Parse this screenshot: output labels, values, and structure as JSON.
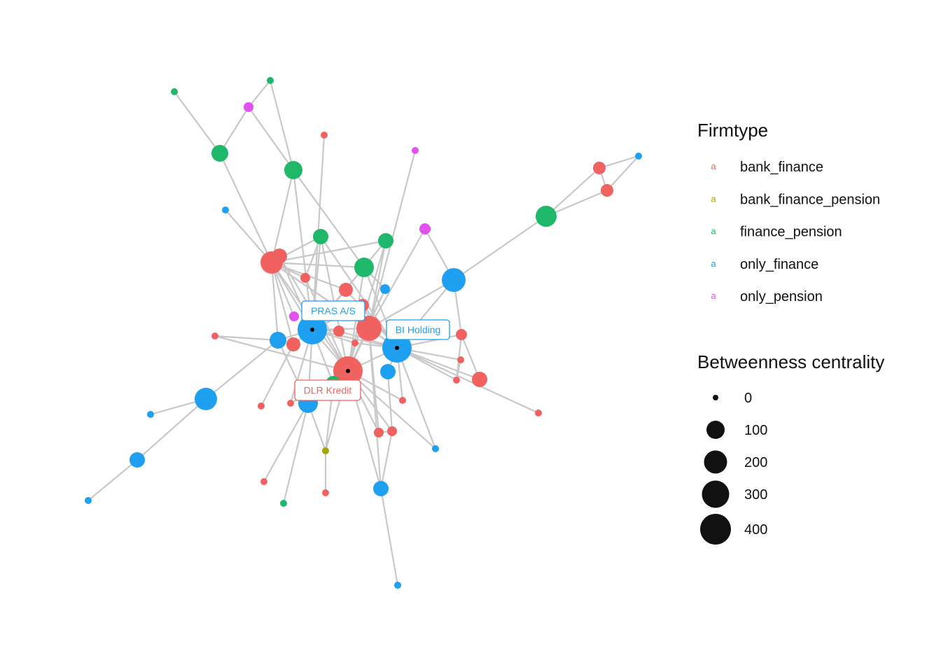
{
  "figure": {
    "type": "network",
    "labels": [
      {
        "text": "PRAS A/S",
        "firmtype": "only_finance"
      },
      {
        "text": "BI Holding",
        "firmtype": "only_finance"
      },
      {
        "text": "DLR Kredit",
        "firmtype": "bank_finance"
      }
    ],
    "edge_color": "#c8c8c8"
  },
  "legend_firmtype": {
    "title": "Firmtype",
    "key_glyph": "a",
    "items": [
      {
        "label": "bank_finance",
        "color": "#F0625F"
      },
      {
        "label": "bank_finance_pension",
        "color": "#A3A500"
      },
      {
        "label": "finance_pension",
        "color": "#1FB86A"
      },
      {
        "label": "only_finance",
        "color": "#1E9FEF"
      },
      {
        "label": "only_pension",
        "color": "#E051EF"
      }
    ]
  },
  "legend_size": {
    "title": "Betweenness centrality",
    "items": [
      {
        "label": "0",
        "value": 0
      },
      {
        "label": "100",
        "value": 100
      },
      {
        "label": "200",
        "value": 200
      },
      {
        "label": "300",
        "value": 300
      },
      {
        "label": "400",
        "value": 400
      }
    ]
  }
}
